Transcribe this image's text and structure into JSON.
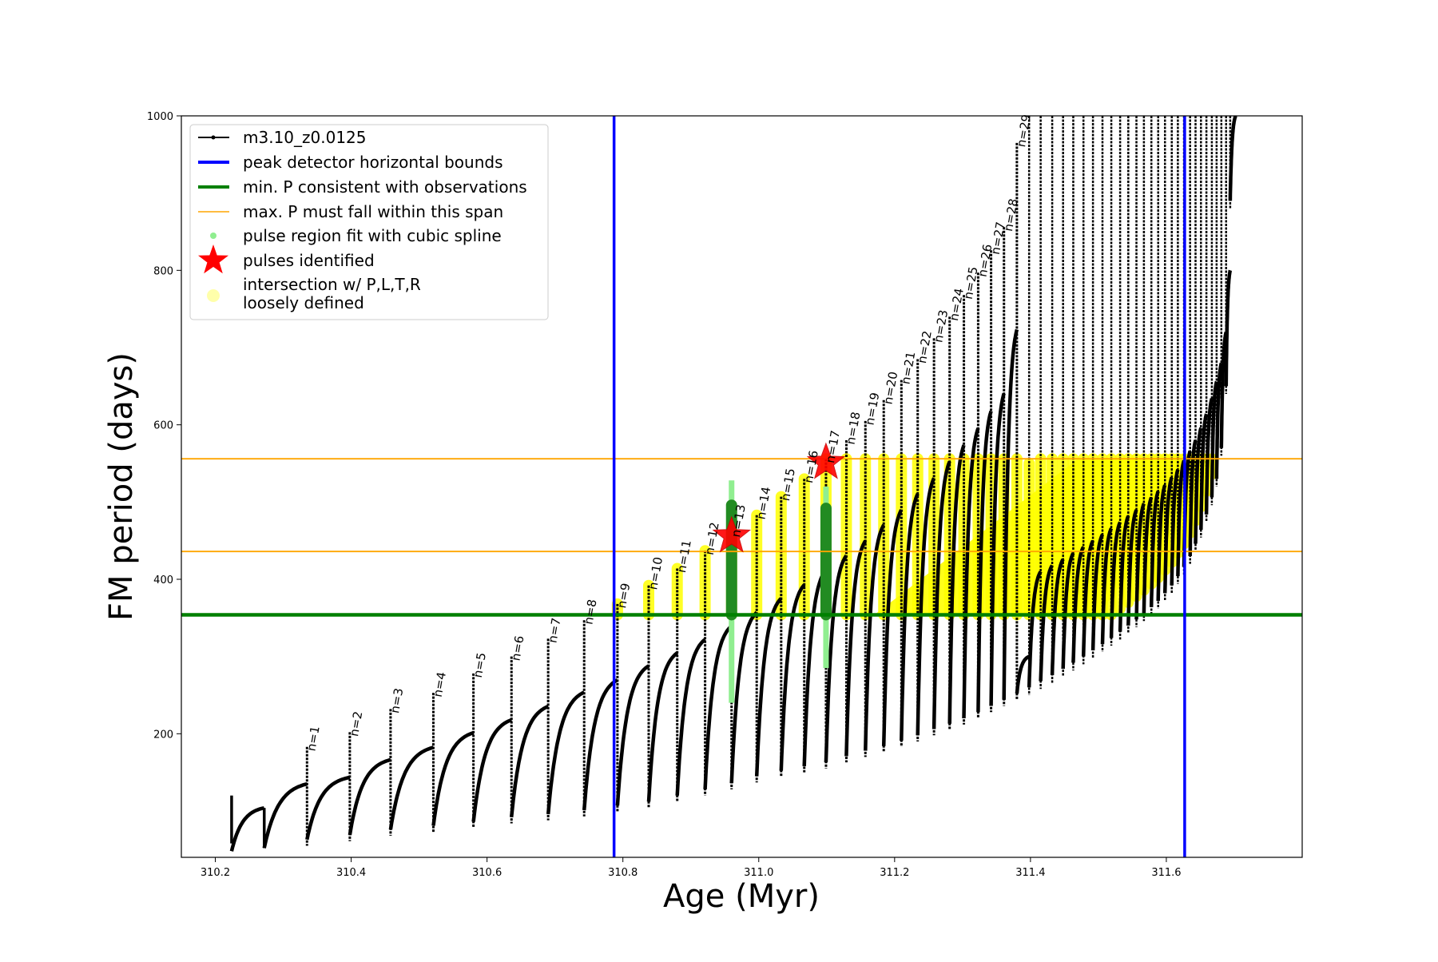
{
  "chart_data": {
    "type": "scatter",
    "xlabel": "Age (Myr)",
    "ylabel": "FM period (days)",
    "xlim": [
      310.15,
      311.8
    ],
    "ylim": [
      40,
      1000
    ],
    "x_ticks": [
      310.2,
      310.4,
      310.6,
      310.8,
      311.0,
      311.2,
      311.4,
      311.6
    ],
    "x_tick_labels": [
      "310.2",
      "310.4",
      "310.6",
      "310.8",
      "311.0",
      "311.2",
      "311.4",
      "311.6"
    ],
    "y_ticks": [
      200,
      400,
      600,
      800,
      1000
    ],
    "y_tick_labels": [
      "200",
      "400",
      "600",
      "800",
      "1000"
    ],
    "grid": false,
    "legend_position": "top-left",
    "legend": [
      {
        "label": "m3.10_z0.0125",
        "style": "line-dot",
        "color": "#000000"
      },
      {
        "label": "peak detector horizontal bounds",
        "style": "line",
        "color": "#0000ff"
      },
      {
        "label": "min. P consistent with observations",
        "style": "line",
        "color": "#008000"
      },
      {
        "label": "max. P must fall within this span",
        "style": "thin-line",
        "color": "#ffa500"
      },
      {
        "label": "pulse region fit with cubic spline",
        "style": "dot",
        "color": "#90ee90"
      },
      {
        "label": "pulses identified",
        "style": "star",
        "color": "#ff0000"
      },
      {
        "label": "intersection w/ P,L,T,R",
        "label2": "loosely defined",
        "style": "circle",
        "color": "#ffffaa"
      }
    ],
    "vertical_lines": [
      {
        "x": 310.787,
        "color": "#0000ff",
        "role": "peak detector horizontal bounds"
      },
      {
        "x": 311.627,
        "color": "#0000ff",
        "role": "peak detector horizontal bounds"
      }
    ],
    "horizontal_lines": [
      {
        "y": 354,
        "color": "#008000",
        "role": "min. P consistent with observations"
      },
      {
        "y": 556,
        "color": "#ffa500",
        "role": "max. P span upper"
      },
      {
        "y": 436,
        "color": "#ffa500",
        "role": "max. P span lower"
      }
    ],
    "pulses": [
      {
        "label": "n=1",
        "x": 310.335,
        "peak": 183,
        "base": 55,
        "next_min": 57
      },
      {
        "label": "n=2",
        "x": 310.398,
        "peak": 202,
        "base": 61,
        "next_min": 60
      },
      {
        "label": "n=3",
        "x": 310.458,
        "peak": 232,
        "base": 68,
        "next_min": 66
      },
      {
        "label": "n=4",
        "x": 310.521,
        "peak": 253,
        "base": 73,
        "next_min": 71
      },
      {
        "label": "n=5",
        "x": 310.58,
        "peak": 278,
        "base": 78,
        "next_min": 76
      },
      {
        "label": "n=6",
        "x": 310.636,
        "peak": 300,
        "base": 84,
        "next_min": 82
      },
      {
        "label": "n=7",
        "x": 310.69,
        "peak": 323,
        "base": 88,
        "next_min": 87
      },
      {
        "label": "n=8",
        "x": 310.743,
        "peak": 347,
        "base": 93,
        "next_min": 92
      },
      {
        "label": "n=9",
        "x": 310.792,
        "peak": 368,
        "base": 99,
        "next_min": 98
      },
      {
        "label": "n=10",
        "x": 310.838,
        "peak": 392,
        "base": 104,
        "next_min": 103
      },
      {
        "label": "n=11",
        "x": 310.88,
        "peak": 414,
        "base": 112,
        "next_min": 110
      },
      {
        "label": "n=12",
        "x": 310.921,
        "peak": 437,
        "base": 120,
        "next_min": 118
      },
      {
        "label": "n=13",
        "x": 310.96,
        "peak": 460,
        "base": 128,
        "next_min": 126
      },
      {
        "label": "n=14",
        "x": 310.997,
        "peak": 483,
        "base": 137,
        "next_min": 135
      },
      {
        "label": "n=15",
        "x": 311.033,
        "peak": 507,
        "base": 144,
        "next_min": 142
      },
      {
        "label": "n=16",
        "x": 311.067,
        "peak": 530,
        "base": 150,
        "next_min": 149
      },
      {
        "label": "n=17",
        "x": 311.099,
        "peak": 556,
        "base": 155,
        "next_min": 154
      },
      {
        "label": "n=18",
        "x": 311.129,
        "peak": 580,
        "base": 163,
        "next_min": 160
      },
      {
        "label": "n=19",
        "x": 311.157,
        "peak": 605,
        "base": 170,
        "next_min": 168
      },
      {
        "label": "n=20",
        "x": 311.184,
        "peak": 632,
        "base": 176,
        "next_min": 174
      },
      {
        "label": "n=21",
        "x": 311.21,
        "peak": 658,
        "base": 183,
        "next_min": 181
      },
      {
        "label": "n=22",
        "x": 311.234,
        "peak": 685,
        "base": 190,
        "next_min": 188
      },
      {
        "label": "n=23",
        "x": 311.258,
        "peak": 712,
        "base": 198,
        "next_min": 196
      },
      {
        "label": "n=24",
        "x": 311.281,
        "peak": 740,
        "base": 205,
        "next_min": 203
      },
      {
        "label": "n=25",
        "x": 311.302,
        "peak": 768,
        "base": 212,
        "next_min": 210
      },
      {
        "label": "n=26",
        "x": 311.323,
        "peak": 797,
        "base": 220,
        "next_min": 218
      },
      {
        "label": "n=27",
        "x": 311.342,
        "peak": 826,
        "base": 228,
        "next_min": 226
      },
      {
        "label": "n=28",
        "x": 311.361,
        "peak": 856,
        "base": 236,
        "next_min": 234
      },
      {
        "label": "n=29",
        "x": 311.38,
        "peak": 965,
        "base": 244,
        "next_min": 242
      }
    ],
    "initial_segment": {
      "x_start": 310.224,
      "x_end": 310.335,
      "y_start": 120
    },
    "late_pulses": {
      "x": [
        311.398,
        311.415,
        311.432,
        311.448,
        311.463,
        311.478,
        311.492,
        311.506,
        311.519,
        311.532,
        311.544,
        311.556,
        311.567,
        311.578,
        311.588,
        311.598,
        311.608,
        311.617,
        311.626,
        311.635,
        311.643,
        311.651,
        311.659,
        311.667,
        311.674,
        311.681,
        311.688,
        311.694
      ],
      "peak": 1000,
      "base": [
        250,
        258,
        266,
        274,
        282,
        290,
        298,
        306,
        314,
        322,
        330,
        338,
        346,
        354,
        362,
        372,
        382,
        394,
        406,
        420,
        436,
        454,
        474,
        496,
        520,
        560,
        640,
        880
      ]
    },
    "spline_regions": [
      {
        "x": 310.96,
        "y_min": 240,
        "y_max": 528
      },
      {
        "x": 311.099,
        "y_min": 285,
        "y_max": 520
      }
    ],
    "pulses_identified": [
      {
        "x": 310.96,
        "y": 456
      },
      {
        "x": 311.099,
        "y": 551
      }
    ],
    "intersection_region": {
      "y_min": 354,
      "y_max": 556
    }
  }
}
